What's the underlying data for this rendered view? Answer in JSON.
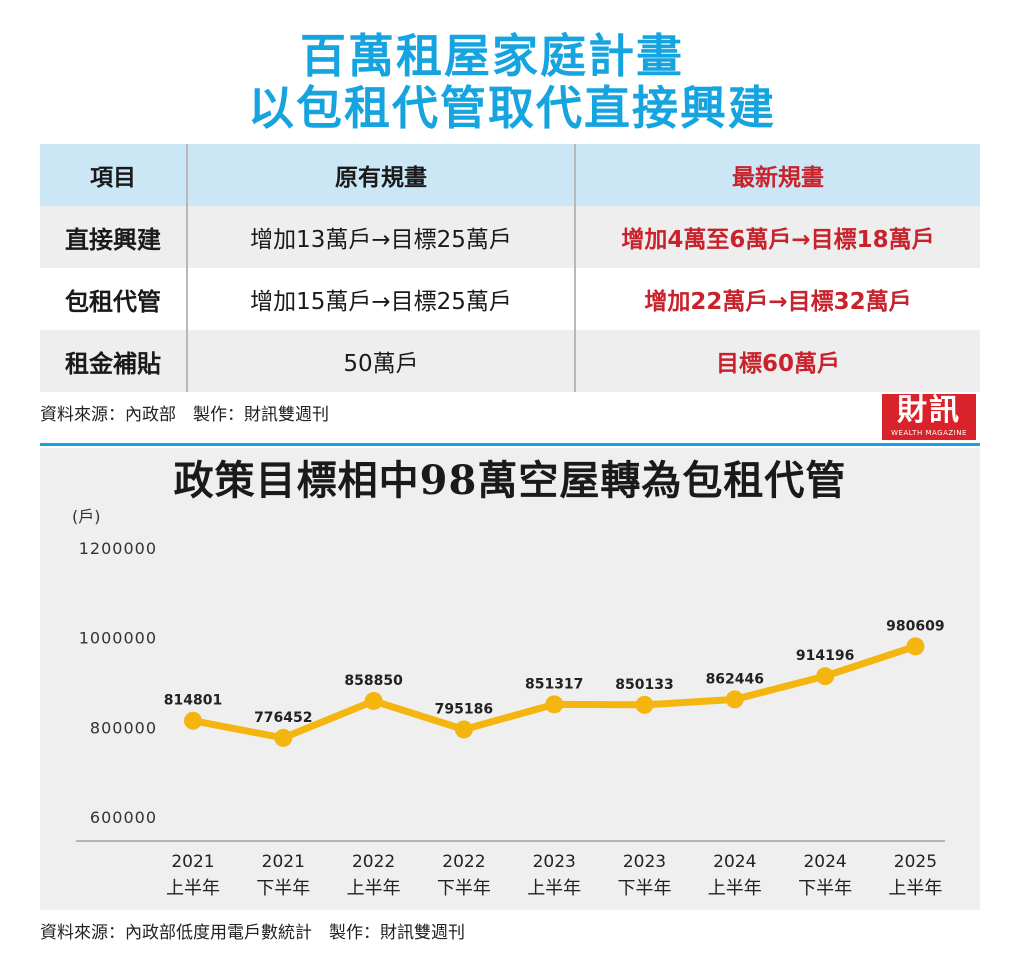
{
  "header": {
    "title_line1": "百萬租屋家庭計畫",
    "title_line2": "以包租代管取代直接興建"
  },
  "table": {
    "headers": [
      "項目",
      "原有規畫",
      "最新規畫"
    ],
    "rows": [
      {
        "item": "直接興建",
        "original": "增加13萬戶→目標25萬戶",
        "latest": "增加4萬至6萬戶→目標18萬戶"
      },
      {
        "item": "包租代管",
        "original": "增加15萬戶→目標25萬戶",
        "latest": "增加22萬戶→目標32萬戶"
      },
      {
        "item": "租金補貼",
        "original": "50萬戶",
        "latest": "目標60萬戶"
      }
    ]
  },
  "source_table": "資料來源：內政部　製作：財訊雙週刊",
  "logo": {
    "main": "財訊",
    "sub": "WEALTH MAGAZINE"
  },
  "colors": {
    "title": "#16a4e0",
    "accent_red": "#c8232c",
    "line": "#f5b50f",
    "table_header": "#cbe7f5"
  },
  "chart_data": {
    "type": "line",
    "title": "政策目標相中98萬空屋轉為包租代管",
    "ylabel": "(戶)",
    "ylim": [
      600000,
      1200000
    ],
    "yticks": [
      600000,
      800000,
      1000000,
      1200000
    ],
    "x": [
      [
        "2021",
        "上半年"
      ],
      [
        "2021",
        "下半年"
      ],
      [
        "2022",
        "上半年"
      ],
      [
        "2022",
        "下半年"
      ],
      [
        "2023",
        "上半年"
      ],
      [
        "2023",
        "下半年"
      ],
      [
        "2024",
        "上半年"
      ],
      [
        "2024",
        "下半年"
      ],
      [
        "2025",
        "上半年"
      ]
    ],
    "series": [
      {
        "values": [
          814801,
          776452,
          858850,
          795186,
          851317,
          850133,
          862446,
          914196,
          980609
        ]
      }
    ],
    "grid": false
  },
  "source_chart": "資料來源：內政部低度用電戶數統計　製作：財訊雙週刊"
}
